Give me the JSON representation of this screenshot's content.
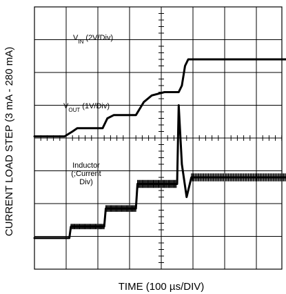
{
  "chart_data": {
    "type": "line",
    "grid": true,
    "xlabel": "TIME (100 µs/DIV)",
    "ylabel": "CURRENT LOAD STEP (3 mA - 280 mA)",
    "x_unit_per_div_us": 100,
    "series": [
      {
        "name": "VIN (2V/Div)",
        "label_main": "V",
        "label_sub": "IN",
        "label_suffix": " (2V/Div)",
        "points": [
          [
            0,
            8.25
          ],
          [
            0.82,
            8.25
          ],
          [
            0.86,
            8.7
          ],
          [
            0.88,
            9.5
          ],
          [
            0.92,
            9.62
          ],
          [
            9.0,
            9.62
          ]
        ]
      },
      {
        "name": "VOUT (1V/Div)",
        "label_main": "V",
        "label_sub": "OUT",
        "label_suffix": " (1V/Div)",
        "points": [
          [
            0,
            4.05
          ],
          [
            0.95,
            4.05
          ],
          [
            1.2,
            4.2
          ],
          [
            1.35,
            4.3
          ],
          [
            2.15,
            4.3
          ],
          [
            2.3,
            4.6
          ],
          [
            2.5,
            4.7
          ],
          [
            3.2,
            4.7
          ],
          [
            3.45,
            5.1
          ],
          [
            3.7,
            5.3
          ],
          [
            4.1,
            5.4
          ],
          [
            4.55,
            5.4
          ],
          [
            4.65,
            5.6
          ],
          [
            4.75,
            6.2
          ],
          [
            4.85,
            6.4
          ],
          [
            9.0,
            6.4
          ]
        ]
      },
      {
        "name": "Inductor (;Current Div)",
        "label_lines": [
          "Inductor",
          "(;Current",
          "Div)"
        ],
        "points": [
          [
            0,
            0.95
          ],
          [
            1.1,
            0.95
          ],
          [
            1.15,
            1.3
          ],
          [
            2.2,
            1.3
          ],
          [
            2.25,
            1.85
          ],
          [
            3.2,
            1.85
          ],
          [
            3.25,
            2.6
          ],
          [
            4.5,
            2.6
          ],
          [
            4.55,
            5.0
          ],
          [
            4.65,
            3.2
          ],
          [
            4.8,
            2.2
          ],
          [
            4.9,
            2.6
          ],
          [
            4.95,
            2.8
          ],
          [
            9.0,
            2.8
          ]
        ]
      }
    ]
  }
}
